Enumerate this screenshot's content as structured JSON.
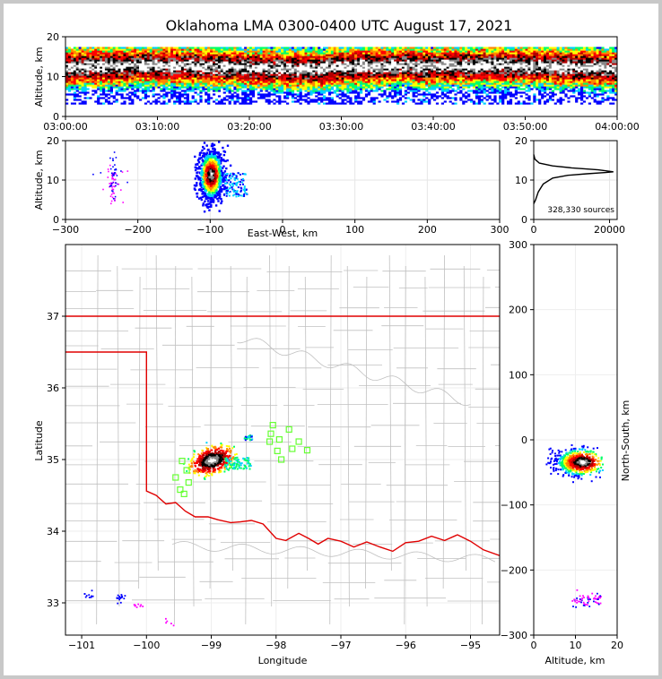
{
  "chart_data": [
    {
      "panel": "altitude-vs-time",
      "type": "heatmap",
      "title": "Oklahoma LMA 0300-0400 UTC August 17, 2021",
      "xlabel": "",
      "ylabel": "Altitude, km",
      "x_ticks": [
        "03:00:00",
        "03:10:00",
        "03:20:00",
        "03:30:00",
        "03:40:00",
        "03:50:00",
        "04:00:00"
      ],
      "xlim_minutes": [
        0,
        60
      ],
      "ylim": [
        0,
        20
      ],
      "y_ticks": [
        0,
        10,
        20
      ],
      "band": {
        "bottom_km": 3,
        "top_km": 17,
        "core_km": 12
      }
    },
    {
      "panel": "altitude-vs-east-west",
      "type": "heatmap",
      "xlabel": "East-West, km",
      "ylabel": "Altitude, km",
      "xlim": [
        -300,
        300
      ],
      "x_ticks": [
        -300,
        -200,
        -100,
        0,
        100,
        200,
        300
      ],
      "ylim": [
        0,
        20
      ],
      "y_ticks": [
        0,
        10,
        20
      ],
      "main_cell_x_km": -100,
      "secondary_cluster_x_km": -235
    },
    {
      "panel": "altitude-histogram",
      "type": "line",
      "xlim": [
        0,
        22000
      ],
      "x_ticks": [
        0,
        20000
      ],
      "ylim": [
        0,
        20
      ],
      "y_ticks": [
        0,
        10,
        20
      ],
      "annotation": "328,330 sources",
      "points": [
        [
          0,
          4
        ],
        [
          500,
          5
        ],
        [
          1200,
          7
        ],
        [
          2500,
          9
        ],
        [
          5000,
          10.5
        ],
        [
          9000,
          11.2
        ],
        [
          14000,
          11.6
        ],
        [
          19000,
          11.9
        ],
        [
          21000,
          12.1
        ],
        [
          17000,
          12.6
        ],
        [
          10000,
          13.1
        ],
        [
          5000,
          13.6
        ],
        [
          1500,
          14.3
        ],
        [
          300,
          15.3
        ],
        [
          0,
          16.5
        ]
      ]
    },
    {
      "panel": "plan-view-map",
      "type": "scatter",
      "xlabel": "Longitude",
      "ylabel": "Latitude",
      "xlim": [
        -101.25,
        -94.55
      ],
      "x_ticks": [
        -101,
        -100,
        -99,
        -98,
        -97,
        -96,
        -95
      ],
      "ylim": [
        32.55,
        38.0
      ],
      "y_ticks": [
        33,
        34,
        35,
        36,
        37
      ],
      "main_cell": {
        "lon": -99.0,
        "lat": 35.0
      },
      "stations": [
        [
          -99.45,
          34.98
        ],
        [
          -99.38,
          34.85
        ],
        [
          -99.55,
          34.75
        ],
        [
          -99.35,
          34.68
        ],
        [
          -99.48,
          34.58
        ],
        [
          -99.42,
          34.52
        ],
        [
          -98.05,
          35.48
        ],
        [
          -98.08,
          35.36
        ],
        [
          -98.1,
          35.25
        ],
        [
          -97.95,
          35.28
        ],
        [
          -97.98,
          35.12
        ],
        [
          -97.8,
          35.42
        ],
        [
          -97.75,
          35.15
        ],
        [
          -97.65,
          35.25
        ],
        [
          -97.52,
          35.13
        ],
        [
          -97.92,
          35.0
        ]
      ]
    },
    {
      "panel": "north-south-vs-altitude",
      "type": "heatmap",
      "xlabel": "Altitude, km",
      "ylabel": "North-South, km",
      "xlim": [
        0,
        20
      ],
      "x_ticks": [
        0,
        10,
        20
      ],
      "ylim": [
        -300,
        300
      ],
      "y_ticks": [
        -300,
        -200,
        -100,
        0,
        100,
        200,
        300
      ],
      "main_cell_ns_km": -33
    }
  ],
  "colors": {
    "state_border": "#e00000",
    "county_lines": "#c0c0c0",
    "stations": "#66ff33",
    "density_scale": [
      "#0000ff",
      "#00d0ff",
      "#00ff66",
      "#ffff00",
      "#ff8800",
      "#ff0000",
      "#b00000",
      "#000000",
      "#888888",
      "#ffffff"
    ]
  }
}
